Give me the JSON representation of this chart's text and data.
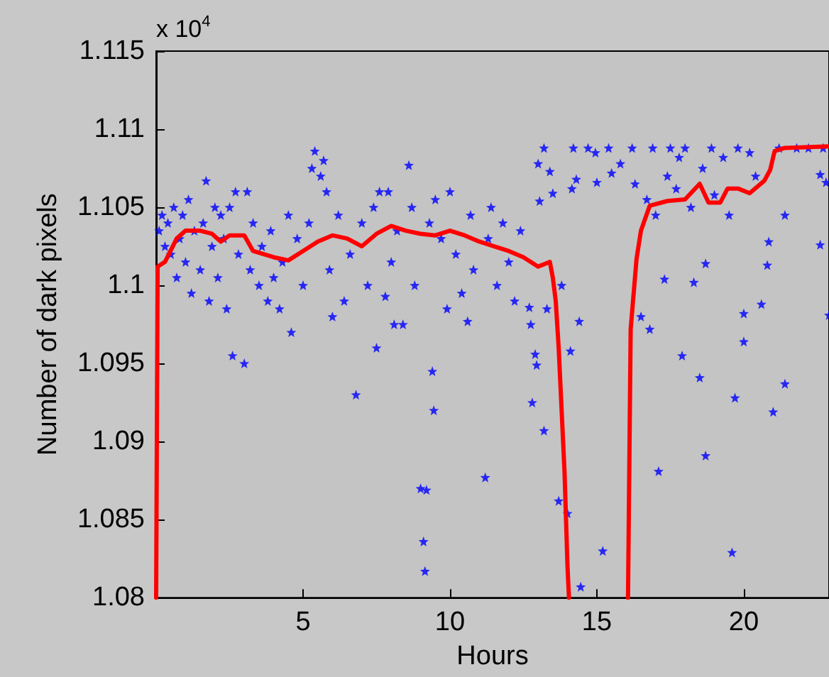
{
  "chart_data": {
    "type": "scatter",
    "xlabel": "Hours",
    "ylabel": "Number of dark pixels",
    "annotations": [
      "x 10$^{4}$"
    ],
    "xlim": [
      0,
      22.9
    ],
    "xticks": [
      5,
      10,
      15,
      20
    ],
    "ylim": [
      1.08,
      1.115
    ],
    "yticks": [
      1.08,
      1.085,
      1.09,
      1.095,
      1.1,
      1.105,
      1.11,
      1.115
    ],
    "grid": false,
    "series": [
      {
        "color": "#0000ff",
        "marker": "star",
        "x": [
          0.1,
          0.2,
          0.3,
          0.4,
          0.5,
          0.6,
          0.7,
          0.8,
          0.9,
          1.0,
          1.1,
          1.2,
          1.3,
          1.5,
          1.6,
          1.7,
          1.8,
          1.9,
          2.0,
          2.1,
          2.2,
          2.3,
          2.4,
          2.5,
          2.6,
          2.7,
          2.8,
          3.0,
          3.1,
          3.2,
          3.3,
          3.5,
          3.6,
          3.8,
          3.9,
          4.0,
          4.2,
          4.3,
          4.5,
          4.6,
          4.8,
          5.0,
          5.2,
          5.3,
          5.4,
          5.6,
          5.7,
          5.8,
          5.9,
          6.0,
          6.2,
          6.4,
          6.6,
          6.8,
          7.0,
          7.2,
          7.4,
          7.5,
          7.6,
          7.8,
          7.9,
          8.0,
          8.1,
          8.2,
          8.4,
          8.6,
          8.7,
          8.8,
          9.0,
          9.1,
          9.15,
          9.2,
          9.3,
          9.4,
          9.45,
          9.5,
          9.7,
          9.9,
          10.0,
          10.2,
          10.4,
          10.6,
          10.7,
          10.8,
          11.2,
          11.3,
          11.4,
          11.6,
          11.8,
          12.0,
          12.2,
          12.4,
          12.7,
          12.75,
          12.8,
          12.9,
          12.95,
          13.0,
          13.05,
          13.2,
          13.2,
          13.3,
          13.4,
          13.5,
          13.7,
          13.8,
          14.0,
          14.1,
          14.15,
          14.2,
          14.3,
          14.4,
          14.45,
          14.7,
          14.95,
          15.0,
          15.2,
          15.4,
          15.5,
          15.8,
          16.2,
          16.3,
          16.5,
          16.7,
          16.8,
          16.9,
          17.0,
          17.1,
          17.3,
          17.4,
          17.5,
          17.7,
          17.8,
          17.9,
          18.0,
          18.2,
          18.3,
          18.5,
          18.6,
          18.7,
          18.7,
          18.9,
          19.0,
          19.3,
          19.5,
          19.6,
          19.7,
          19.8,
          20.0,
          20.0,
          20.2,
          20.4,
          20.6,
          20.8,
          20.85,
          21.0,
          21.2,
          21.4,
          21.4,
          21.8,
          22.2,
          22.6,
          22.6,
          22.7,
          22.8,
          22.9
        ],
        "values": [
          1.1035,
          1.1045,
          1.1025,
          1.104,
          1.102,
          1.105,
          1.1005,
          1.103,
          1.1045,
          1.1015,
          1.1055,
          1.0995,
          1.1035,
          1.101,
          1.104,
          1.1067,
          1.099,
          1.1025,
          1.105,
          1.1005,
          1.1045,
          1.103,
          1.0985,
          1.105,
          1.0955,
          1.106,
          1.102,
          1.095,
          1.106,
          1.101,
          1.104,
          1.1,
          1.1025,
          1.099,
          1.1035,
          1.1005,
          1.0985,
          1.1015,
          1.1045,
          1.097,
          1.103,
          1.1,
          1.104,
          1.1075,
          1.1086,
          1.107,
          1.108,
          1.106,
          1.101,
          1.098,
          1.1045,
          1.099,
          1.102,
          1.093,
          1.104,
          1.1,
          1.105,
          1.096,
          1.106,
          1.0993,
          1.106,
          1.1015,
          1.0975,
          1.1035,
          1.0975,
          1.1077,
          1.105,
          1.1,
          1.087,
          1.0836,
          1.0817,
          1.0869,
          1.104,
          1.0945,
          1.092,
          1.1055,
          1.103,
          1.0985,
          1.106,
          1.102,
          1.0995,
          1.0977,
          1.1045,
          1.101,
          1.0877,
          1.103,
          1.105,
          1.1,
          1.104,
          1.1015,
          1.099,
          1.1035,
          1.0986,
          1.0975,
          1.0925,
          1.0956,
          1.0949,
          1.1078,
          1.1054,
          1.1088,
          1.0907,
          1.0985,
          1.1073,
          1.1059,
          1.0862,
          1.1,
          1.0854,
          1.0958,
          1.1062,
          1.1088,
          1.1068,
          1.0977,
          1.0807,
          1.1088,
          1.1085,
          1.1066,
          1.083,
          1.1088,
          1.1072,
          1.1078,
          1.1088,
          1.1065,
          1.098,
          1.1055,
          1.0972,
          1.1088,
          1.1045,
          1.0881,
          1.1004,
          1.107,
          1.1088,
          1.1062,
          1.1082,
          1.0955,
          1.1088,
          1.105,
          1.1002,
          1.0941,
          1.1075,
          1.1014,
          1.0891,
          1.1088,
          1.1058,
          1.1082,
          1.1045,
          1.0829,
          1.0928,
          1.1088,
          1.0982,
          1.0964,
          1.1085,
          1.107,
          1.0988,
          1.1013,
          1.1028,
          1.0919,
          1.1088,
          1.1045,
          1.0937,
          1.1088,
          1.1088,
          1.1026,
          1.1071,
          1.1088,
          1.1066,
          1.0981
        ]
      },
      {
        "type": "line",
        "color": "#ff0000",
        "marker": "none",
        "line_style": "solid",
        "x": [
          0,
          0.05,
          0.3,
          0.7,
          1.0,
          1.5,
          1.9,
          2.2,
          2.5,
          3.0,
          3.3,
          4.0,
          4.5,
          5.0,
          5.5,
          6.0,
          6.5,
          7.0,
          7.5,
          8.0,
          8.5,
          9.0,
          9.5,
          10.0,
          10.5,
          11.0,
          11.5,
          12.0,
          12.5,
          13.0,
          13.4,
          13.5,
          13.6,
          13.7,
          13.8,
          13.9,
          13.95,
          14.0,
          14.05
        ],
        "values": [
          1.08,
          1.1012,
          1.1015,
          1.103,
          1.1035,
          1.1035,
          1.1033,
          1.1028,
          1.1032,
          1.1032,
          1.1022,
          1.1018,
          1.1016,
          1.1022,
          1.1028,
          1.1032,
          1.103,
          1.1025,
          1.1033,
          1.1038,
          1.1035,
          1.1033,
          1.1032,
          1.1035,
          1.1032,
          1.1028,
          1.1025,
          1.1022,
          1.1018,
          1.1012,
          1.1015,
          1.1005,
          1.099,
          1.096,
          1.092,
          1.088,
          1.085,
          1.082,
          1.08
        ]
      },
      {
        "type": "line",
        "color": "#ff0000",
        "marker": "none",
        "line_style": "solid",
        "x": [
          16.06,
          16.15,
          16.35,
          16.5,
          16.8,
          17.4,
          18.0,
          18.5,
          18.8,
          19.2,
          19.45,
          19.8,
          20.2,
          20.7,
          20.9,
          21.05,
          21.4,
          22.9
        ],
        "values": [
          1.08,
          1.0972,
          1.1017,
          1.1035,
          1.1051,
          1.1054,
          1.1055,
          1.1065,
          1.1053,
          1.1053,
          1.1062,
          1.1062,
          1.1059,
          1.1067,
          1.1074,
          1.1086,
          1.1088,
          1.1089
        ]
      }
    ]
  }
}
